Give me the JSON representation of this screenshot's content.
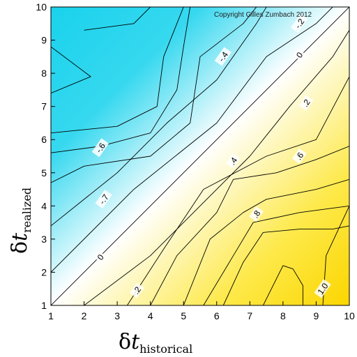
{
  "chart_data": {
    "type": "contour",
    "title": "",
    "copyright": "Copyright Gilles Zumbach 2012",
    "xlabel": {
      "symbol": "δ",
      "variable": "t",
      "subscript": "historical"
    },
    "ylabel": {
      "symbol": "δ",
      "variable": "t",
      "subscript": "realized"
    },
    "xlim": [
      1,
      10
    ],
    "ylim": [
      1,
      10
    ],
    "x_ticks": [
      "1",
      "2",
      "3",
      "4",
      "5",
      "6",
      "7",
      "8",
      "9",
      "10"
    ],
    "y_ticks": [
      "1",
      "2",
      "3",
      "4",
      "5",
      "6",
      "7",
      "8",
      "9",
      "10"
    ],
    "colors": {
      "negative": "#1ad2ec",
      "zero": "#ffffff",
      "positive": "#fcd600",
      "line": "#000000"
    },
    "contour_labels": [
      {
        "text": "-.2",
        "x": 8.5,
        "y": 9.5
      },
      {
        "text": "-.4",
        "x": 6.2,
        "y": 8.5
      },
      {
        "text": "-.6",
        "x": 2.5,
        "y": 5.75
      },
      {
        "text": "-.7",
        "x": 2.6,
        "y": 4.2
      },
      {
        "text": "0",
        "x": 2.5,
        "y": 2.45
      },
      {
        "text": "0",
        "x": 8.5,
        "y": 8.55
      },
      {
        "text": ".2",
        "x": 3.6,
        "y": 1.45
      },
      {
        "text": ".2",
        "x": 8.7,
        "y": 7.1
      },
      {
        "text": ".4",
        "x": 6.5,
        "y": 5.35
      },
      {
        "text": ".6",
        "x": 8.5,
        "y": 5.5
      },
      {
        "text": ".8",
        "x": 7.2,
        "y": 3.75
      },
      {
        "text": "1.0",
        "x": 9.2,
        "y": 1.5
      }
    ],
    "contour_lines": [
      {
        "level": 0,
        "points": [
          [
            1,
            1
          ],
          [
            10,
            10
          ]
        ]
      },
      {
        "level": -0.2,
        "points": [
          [
            1,
            2
          ],
          [
            3.5,
            4.5
          ],
          [
            6,
            6.5
          ],
          [
            7.5,
            8.5
          ],
          [
            9,
            9.5
          ],
          [
            9.5,
            10
          ]
        ]
      },
      {
        "level": -0.4,
        "points": [
          [
            1,
            3.4
          ],
          [
            3,
            5
          ],
          [
            4.5,
            6.5
          ],
          [
            6,
            7.8
          ],
          [
            7.2,
            9.5
          ],
          [
            7.5,
            10
          ]
        ]
      },
      {
        "level": -0.6,
        "points": [
          [
            1,
            4.7
          ],
          [
            2,
            5.2
          ],
          [
            4,
            5.5
          ],
          [
            5.2,
            6.5
          ],
          [
            5.5,
            8.5
          ],
          [
            6.8,
            9.5
          ],
          [
            7.2,
            10
          ]
        ]
      },
      {
        "level": -0.7,
        "points": [
          [
            1,
            5.6
          ],
          [
            2.5,
            5.8
          ],
          [
            4,
            6.2
          ],
          [
            4.8,
            7.5
          ],
          [
            5,
            8.8
          ],
          [
            5.2,
            10
          ]
        ]
      },
      {
        "level": -0.75,
        "points": [
          [
            1,
            6.2
          ],
          [
            3,
            6.4
          ],
          [
            4.2,
            7
          ],
          [
            4.4,
            8.5
          ],
          [
            4.8,
            9.5
          ],
          [
            5,
            10
          ]
        ]
      },
      {
        "level": -0.8,
        "points": [
          [
            1,
            7.4
          ],
          [
            2.2,
            7.9
          ],
          [
            1,
            8.8
          ]
        ]
      },
      {
        "level": -0.8,
        "points": [
          [
            2,
            9.3
          ],
          [
            3.5,
            9.5
          ],
          [
            4,
            10
          ]
        ]
      },
      {
        "level": 0.2,
        "points": [
          [
            2,
            1
          ],
          [
            4,
            2.5
          ],
          [
            5.5,
            4
          ],
          [
            7,
            5.5
          ],
          [
            8.2,
            7
          ],
          [
            9.5,
            8.5
          ],
          [
            10,
            9.3
          ]
        ]
      },
      {
        "level": 0.4,
        "points": [
          [
            3.3,
            1
          ],
          [
            4.4,
            2.7
          ],
          [
            5.6,
            4.5
          ],
          [
            7.5,
            5.5
          ],
          [
            9,
            6
          ],
          [
            10,
            7.9
          ]
        ]
      },
      {
        "level": 0.6,
        "points": [
          [
            4,
            1
          ],
          [
            4.8,
            2.5
          ],
          [
            6,
            3.8
          ],
          [
            6.5,
            4.8
          ],
          [
            7.8,
            5
          ],
          [
            9,
            5.4
          ],
          [
            10,
            5.8
          ]
        ]
      },
      {
        "level": 0.7,
        "points": [
          [
            5,
            1
          ],
          [
            5.8,
            3
          ],
          [
            6.8,
            3.8
          ],
          [
            7.5,
            4.2
          ],
          [
            9,
            4.5
          ],
          [
            10,
            4.8
          ]
        ]
      },
      {
        "level": 0.8,
        "points": [
          [
            5.6,
            1
          ],
          [
            6.5,
            2.5
          ],
          [
            7.1,
            3.5
          ],
          [
            8.5,
            3.8
          ],
          [
            10,
            4
          ]
        ]
      },
      {
        "level": 0.9,
        "points": [
          [
            6.2,
            1
          ],
          [
            6.8,
            2.3
          ],
          [
            7.4,
            3.2
          ],
          [
            8.5,
            3.3
          ],
          [
            9.5,
            3.3
          ],
          [
            10,
            3.4
          ]
        ]
      },
      {
        "level": 1.0,
        "points": [
          [
            7.4,
            1
          ],
          [
            8,
            2.2
          ],
          [
            8.3,
            2.1
          ],
          [
            8.6,
            1.6
          ],
          [
            8.6,
            1
          ]
        ]
      },
      {
        "level": 1.0,
        "points": [
          [
            9.2,
            1
          ],
          [
            9.3,
            2.5
          ],
          [
            10,
            4
          ]
        ]
      }
    ]
  }
}
